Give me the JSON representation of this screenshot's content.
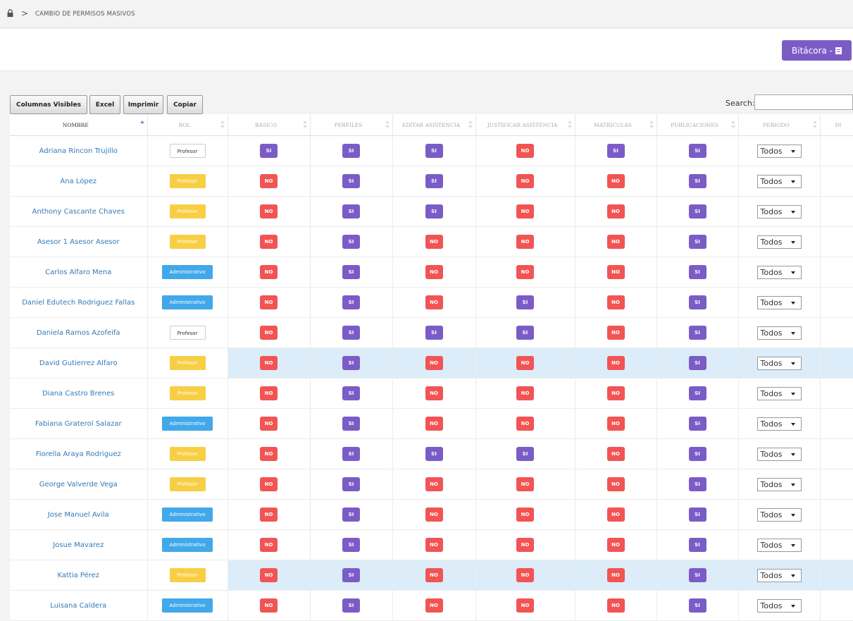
{
  "breadcrumb": {
    "separator": ">",
    "current": "CAMBIO DE PERMISOS MASIVOS"
  },
  "header": {
    "bitacora_label": "Bitácora -"
  },
  "toolbar": {
    "columnas_label": "Columnas Visibles",
    "excel_label": "Excel",
    "imprimir_label": "Imprimir",
    "copiar_label": "Copiar"
  },
  "search": {
    "label": "Search:",
    "value": ""
  },
  "colors": {
    "accent_purple": "#7b5cc7",
    "no_red": "#f25454",
    "admin_blue": "#41a8ea",
    "profesor_yellow": "#f8cf44",
    "highlight": "#dcedf9"
  },
  "table": {
    "columns": [
      "NOMBRE",
      "ROL",
      "BÁSICO",
      "PERFILES",
      "EDITAR ASISTENCIA",
      "JUSTIFICAR ASISTENCIA",
      "MATRICULAS",
      "PUBLICACIONES",
      "PERIODO",
      "DI"
    ],
    "rows": [
      {
        "name": "Adriana Rincon Trujillo",
        "role": "Profesor",
        "role_style": "profesor-w",
        "perms": [
          "SI",
          "SI",
          "SI",
          "NO",
          "SI",
          "SI"
        ],
        "periodo": "Todos",
        "hl": false
      },
      {
        "name": "Ana López",
        "role": "Profesor",
        "role_style": "profesor-y",
        "perms": [
          "NO",
          "SI",
          "SI",
          "NO",
          "NO",
          "SI"
        ],
        "periodo": "Todos",
        "hl": false
      },
      {
        "name": "Anthony Cascante Chaves",
        "role": "Profesor",
        "role_style": "profesor-y",
        "perms": [
          "NO",
          "SI",
          "SI",
          "NO",
          "NO",
          "SI"
        ],
        "periodo": "Todos",
        "hl": false
      },
      {
        "name": "Asesor 1 Asesor Asesor",
        "role": "Profesor",
        "role_style": "profesor-y",
        "perms": [
          "NO",
          "SI",
          "NO",
          "NO",
          "NO",
          "SI"
        ],
        "periodo": "Todos",
        "hl": false
      },
      {
        "name": "Carlos Alfaro Mena",
        "role": "Administrativo",
        "role_style": "admin",
        "perms": [
          "NO",
          "SI",
          "NO",
          "NO",
          "NO",
          "SI"
        ],
        "periodo": "Todos",
        "hl": false
      },
      {
        "name": "Daniel Edutech Rodriguez Fallas",
        "role": "Administrativo",
        "role_style": "admin",
        "perms": [
          "NO",
          "SI",
          "NO",
          "SI",
          "NO",
          "SI"
        ],
        "periodo": "Todos",
        "hl": false
      },
      {
        "name": "Daniela Ramos Azofeifa",
        "role": "Profesor",
        "role_style": "profesor-w",
        "perms": [
          "NO",
          "SI",
          "SI",
          "SI",
          "NO",
          "SI"
        ],
        "periodo": "Todos",
        "hl": false
      },
      {
        "name": "David Gutierrez Alfaro",
        "role": "Profesor",
        "role_style": "profesor-y",
        "perms": [
          "NO",
          "SI",
          "NO",
          "NO",
          "NO",
          "SI"
        ],
        "periodo": "Todos",
        "hl": true
      },
      {
        "name": "Diana Castro Brenes",
        "role": "Profesor",
        "role_style": "profesor-y",
        "perms": [
          "NO",
          "SI",
          "NO",
          "NO",
          "NO",
          "SI"
        ],
        "periodo": "Todos",
        "hl": false
      },
      {
        "name": "Fabiana Graterol Salazar",
        "role": "Administrativo",
        "role_style": "admin",
        "perms": [
          "NO",
          "SI",
          "NO",
          "NO",
          "NO",
          "SI"
        ],
        "periodo": "Todos",
        "hl": false
      },
      {
        "name": "Fiorella Araya Rodriguez",
        "role": "Profesor",
        "role_style": "profesor-y",
        "perms": [
          "NO",
          "SI",
          "SI",
          "SI",
          "NO",
          "SI"
        ],
        "periodo": "Todos",
        "hl": false
      },
      {
        "name": "George Valverde Vega",
        "role": "Profesor",
        "role_style": "profesor-y",
        "perms": [
          "NO",
          "SI",
          "NO",
          "NO",
          "NO",
          "SI"
        ],
        "periodo": "Todos",
        "hl": false
      },
      {
        "name": "Jose Manuel Avila",
        "role": "Administrativo",
        "role_style": "admin",
        "perms": [
          "NO",
          "SI",
          "NO",
          "NO",
          "NO",
          "SI"
        ],
        "periodo": "Todos",
        "hl": false
      },
      {
        "name": "Josue Mavarez",
        "role": "Administrativo",
        "role_style": "admin",
        "perms": [
          "NO",
          "SI",
          "NO",
          "NO",
          "NO",
          "SI"
        ],
        "periodo": "Todos",
        "hl": false
      },
      {
        "name": "Kattia Pérez",
        "role": "Profesor",
        "role_style": "profesor-y",
        "perms": [
          "NO",
          "SI",
          "NO",
          "NO",
          "NO",
          "SI"
        ],
        "periodo": "Todos",
        "hl": true
      },
      {
        "name": "Luisana Caldera",
        "role": "Administrativo",
        "role_style": "admin",
        "perms": [
          "NO",
          "SI",
          "NO",
          "NO",
          "NO",
          "SI"
        ],
        "periodo": "Todos",
        "hl": false
      }
    ]
  }
}
